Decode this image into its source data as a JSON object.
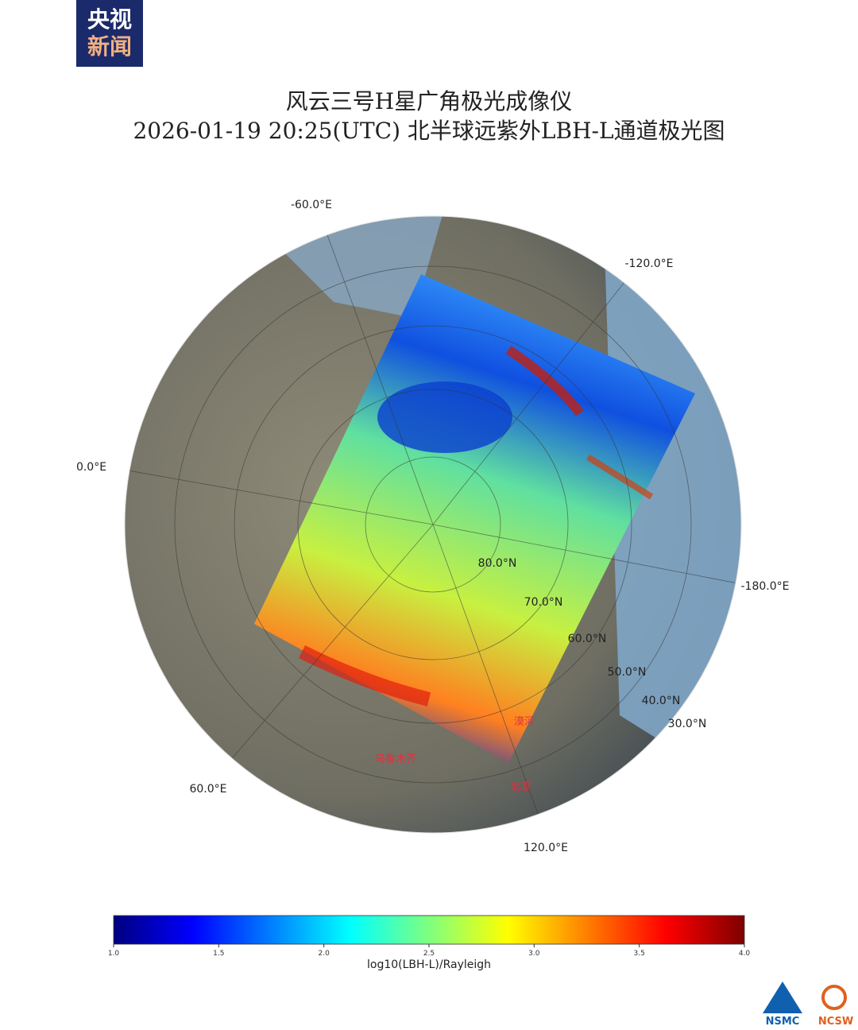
{
  "logo": {
    "line1": "央视",
    "line2": "新闻"
  },
  "title": {
    "line1": "风云三号H星广角极光成像仪",
    "line2": "2026-01-19 20:25(UTC) 北半球远紫外LBH-L通道极光图"
  },
  "map": {
    "longitude_labels": [
      "-60.0°E",
      "-120.0°E",
      "0.0°E",
      "-180.0°E",
      "60.0°E",
      "120.0°E"
    ],
    "latitude_labels": [
      "80.0°N",
      "70.0°N",
      "60.0°N",
      "50.0°N",
      "40.0°N",
      "30.0°N"
    ],
    "cities": [
      "漠河",
      "乌鲁木齐",
      "北京"
    ]
  },
  "colorbar": {
    "label": "log10(LBH-L)/Rayleigh",
    "range": [
      1,
      4
    ],
    "colors": [
      "#00007f",
      "#0000ff",
      "#007fff",
      "#00ffff",
      "#7fff7f",
      "#ffff00",
      "#ff7f00",
      "#ff0000",
      "#7f0000"
    ],
    "ticks": [
      {
        "value": 1,
        "label": "1.0"
      },
      {
        "value": 1.5,
        "label": "1.5"
      },
      {
        "value": 2,
        "label": "2.0"
      },
      {
        "value": 2.5,
        "label": "2.5"
      },
      {
        "value": 3,
        "label": "3.0"
      },
      {
        "value": 3.5,
        "label": "3.5"
      },
      {
        "value": 4,
        "label": "4.0"
      }
    ]
  },
  "footer": {
    "logo_left": "NSMC",
    "logo_right": "NCSW"
  }
}
